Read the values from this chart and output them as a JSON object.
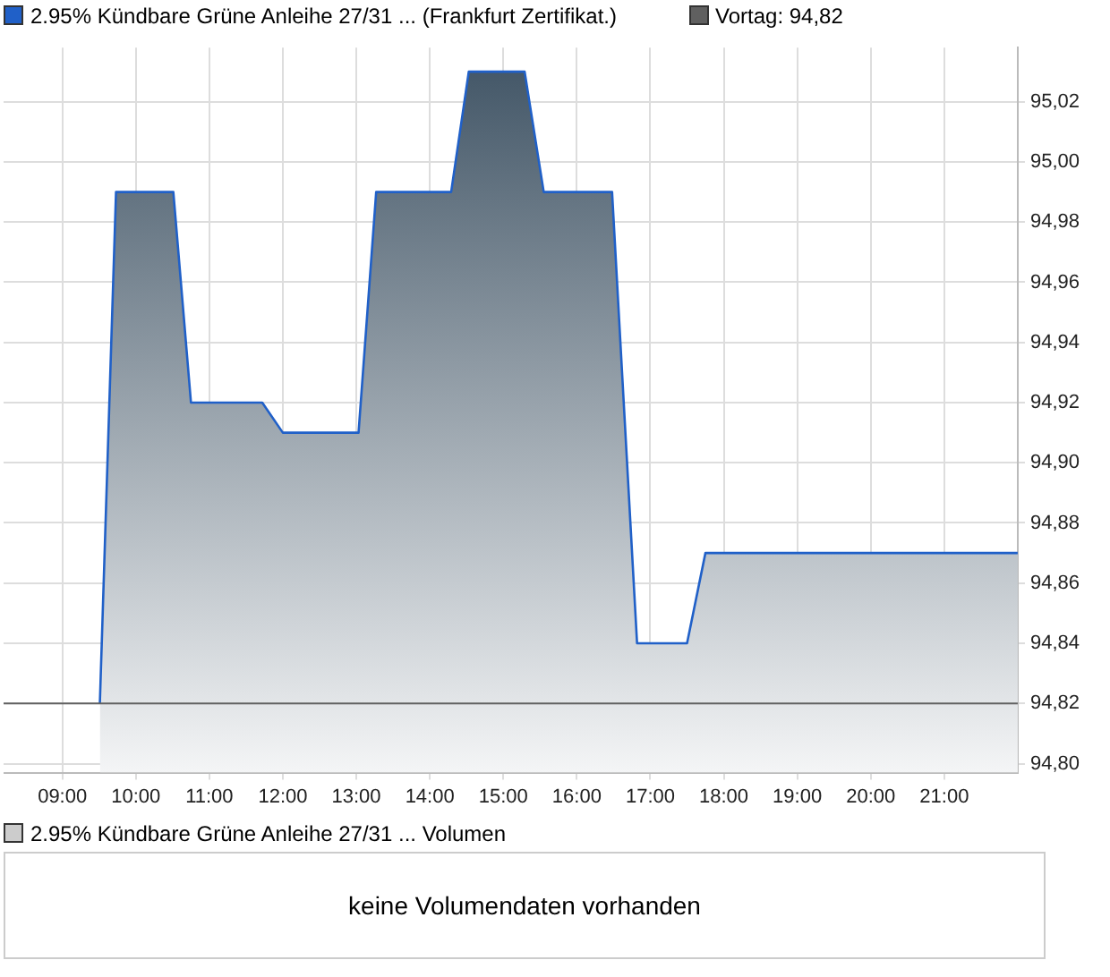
{
  "chart_data": {
    "type": "area",
    "series": [
      {
        "name": "2.95% Kündbare Grüne Anleihe 27/31 ... (Frankfurt Zertifikat.)",
        "color": "#2060c8",
        "x": [
          9.51,
          9.73,
          10.51,
          10.75,
          11.72,
          12.0,
          13.03,
          13.27,
          14.29,
          14.53,
          15.29,
          15.55,
          16.48,
          16.82,
          17.5,
          17.75,
          22.0
        ],
        "values": [
          94.82,
          94.99,
          94.99,
          94.92,
          94.92,
          94.91,
          94.91,
          94.99,
          94.99,
          95.03,
          95.03,
          94.99,
          94.99,
          94.84,
          94.84,
          94.87,
          94.87
        ]
      }
    ],
    "xlim": [
      8.2,
      22.0
    ],
    "xticks": [
      {
        "value": 9,
        "label": "09:00"
      },
      {
        "value": 10,
        "label": "10:00"
      },
      {
        "value": 11,
        "label": "11:00"
      },
      {
        "value": 12,
        "label": "12:00"
      },
      {
        "value": 13,
        "label": "13:00"
      },
      {
        "value": 14,
        "label": "14:00"
      },
      {
        "value": 15,
        "label": "15:00"
      },
      {
        "value": 16,
        "label": "16:00"
      },
      {
        "value": 17,
        "label": "17:00"
      },
      {
        "value": 18,
        "label": "18:00"
      },
      {
        "value": 19,
        "label": "19:00"
      },
      {
        "value": 20,
        "label": "20:00"
      },
      {
        "value": 21,
        "label": "21:00"
      }
    ],
    "ylim": [
      94.797,
      95.038
    ],
    "yticks": [
      {
        "value": 94.8,
        "label": "94,80"
      },
      {
        "value": 94.82,
        "label": "94,82"
      },
      {
        "value": 94.84,
        "label": "94,84"
      },
      {
        "value": 94.86,
        "label": "94,86"
      },
      {
        "value": 94.88,
        "label": "94,88"
      },
      {
        "value": 94.9,
        "label": "94,90"
      },
      {
        "value": 94.92,
        "label": "94,92"
      },
      {
        "value": 94.94,
        "label": "94,94"
      },
      {
        "value": 94.96,
        "label": "94,96"
      },
      {
        "value": 94.98,
        "label": "94,98"
      },
      {
        "value": 95.0,
        "label": "95,00"
      },
      {
        "value": 95.02,
        "label": "95,02"
      }
    ],
    "ref_lines": [
      {
        "axis": "y",
        "value": 94.82,
        "label": "Vortag: 94,82",
        "color": "#606060"
      }
    ],
    "annotations": [
      "2.95% Kündbare Grüne Anleihe 27/31 ... Volumen",
      "keine Volumendaten vorhanden"
    ],
    "grid": true,
    "legend": "top left",
    "marker": "none",
    "line_style": "solid"
  }
}
